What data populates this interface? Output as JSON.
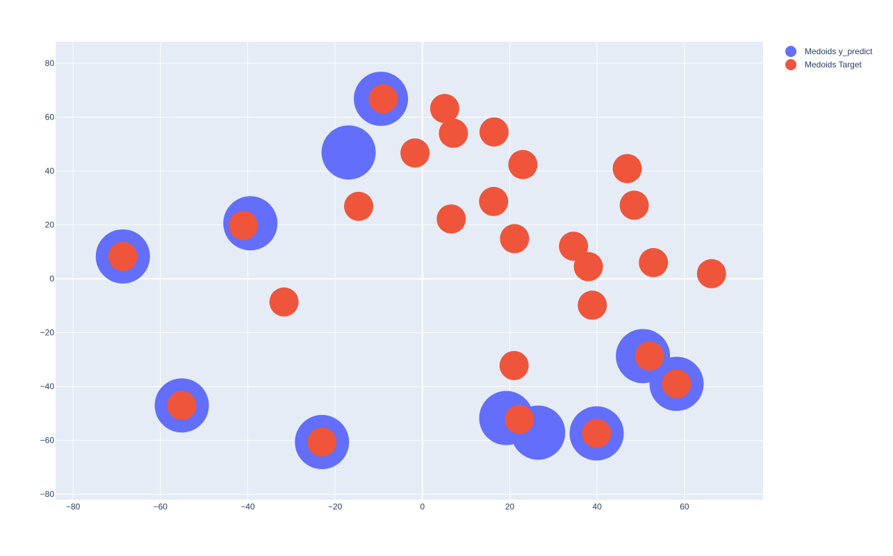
{
  "chart_data": {
    "type": "scatter",
    "xlim": [
      -84,
      78
    ],
    "ylim": [
      -82,
      88
    ],
    "x_ticks": [
      -80,
      -60,
      -40,
      -20,
      0,
      20,
      40,
      60
    ],
    "y_ticks": [
      -80,
      -60,
      -40,
      -20,
      0,
      20,
      40,
      60,
      80
    ],
    "grid": true,
    "legend_position": "top-right",
    "series": [
      {
        "name": "Medoids y_predict",
        "color": "#636efa",
        "marker": "large-circle",
        "x": [
          -9.5,
          -16.9,
          -39.4,
          -68.6,
          -55.1,
          -23.0,
          19.2,
          26.5,
          39.9,
          50.5,
          58.2
        ],
        "y": [
          66.8,
          46.9,
          20.6,
          8.3,
          -47.0,
          -60.6,
          -51.7,
          -57.1,
          -57.4,
          -28.7,
          -39.0
        ]
      },
      {
        "name": "Medoids Target",
        "color": "#ef553b",
        "marker": "small-circle",
        "x": [
          -9.0,
          5.1,
          7.1,
          16.4,
          -1.7,
          23.0,
          -14.6,
          6.6,
          16.3,
          21.1,
          46.9,
          48.5,
          34.6,
          38.0,
          52.9,
          66.2,
          38.9,
          -41.0,
          -68.6,
          -31.7,
          21.0,
          52.0,
          58.2,
          22.2,
          -55.1,
          -23.0,
          39.9
        ],
        "y": [
          66.8,
          63.2,
          54.0,
          54.5,
          46.7,
          42.4,
          26.9,
          22.2,
          28.7,
          14.9,
          40.9,
          27.3,
          12.1,
          4.5,
          6.0,
          1.9,
          -9.8,
          19.8,
          8.3,
          -8.6,
          -32.2,
          -28.7,
          -39.0,
          -52.2,
          -47.0,
          -60.6,
          -57.4
        ]
      }
    ]
  }
}
